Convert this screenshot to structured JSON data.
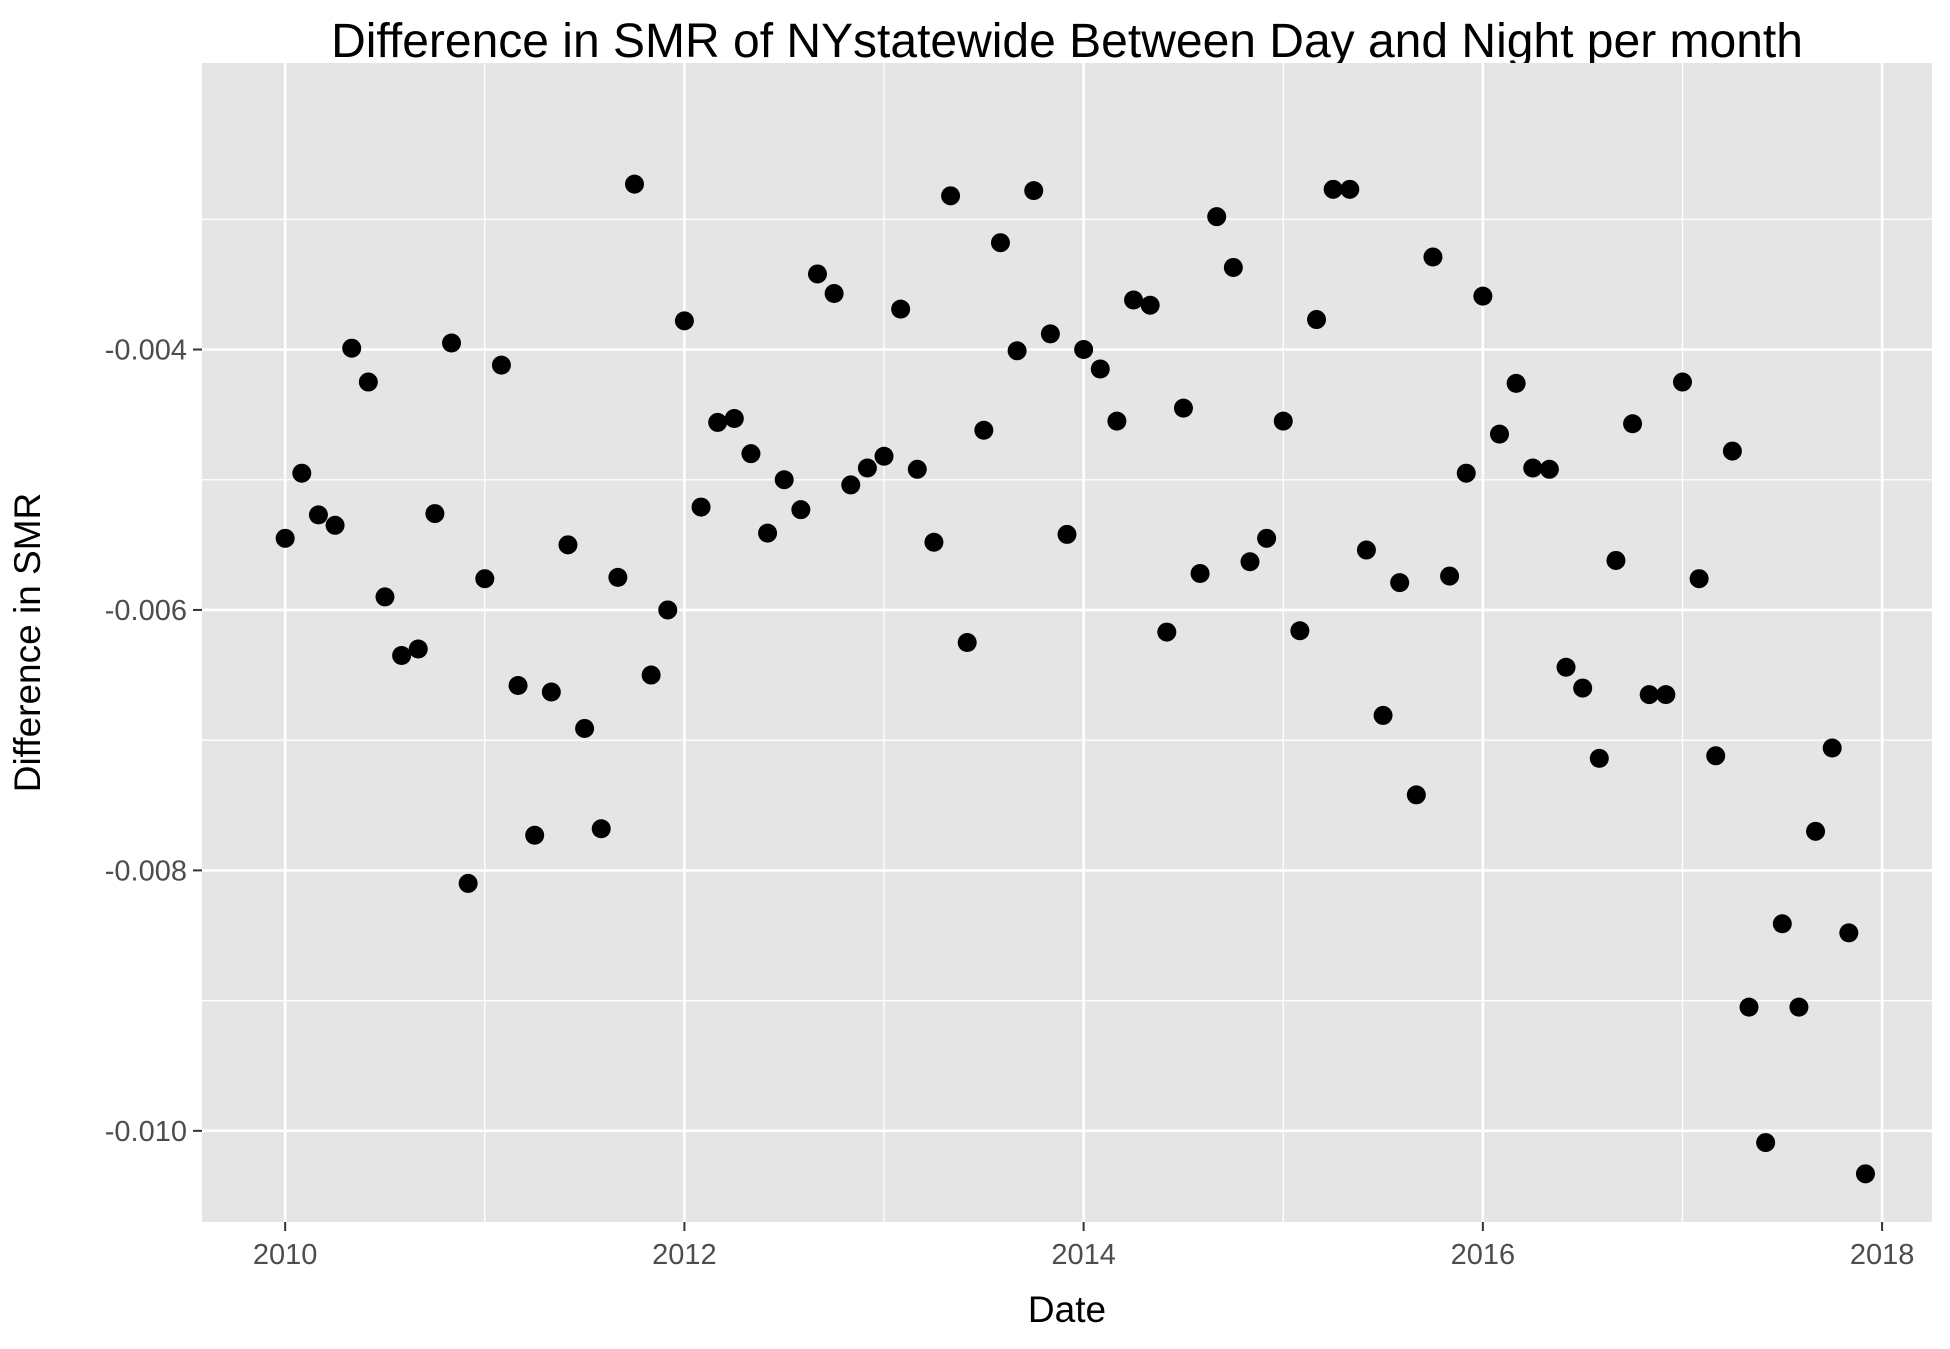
{
  "chart_data": {
    "type": "scatter",
    "title": "Difference in SMR of NYstatewide Between Day and Night per month",
    "xlabel": "Date",
    "ylabel": "Difference in SMR",
    "x_ticks": [
      "2010",
      "2012",
      "2014",
      "2016",
      "2018"
    ],
    "y_ticks": [
      "-0.004",
      "-0.006",
      "-0.008",
      "-0.010"
    ],
    "xlim": [
      "2009-08",
      "2018-04"
    ],
    "ylim": [
      -0.0107,
      -0.0018
    ],
    "grid": true,
    "legend": "none",
    "point_color": "#000000",
    "panel_background": "#e5e5e5",
    "grid_color": "#ffffff",
    "series": [
      {
        "points": [
          [
            "2010-01",
            -0.00545
          ],
          [
            "2010-02",
            -0.00495
          ],
          [
            "2010-03",
            -0.00527
          ],
          [
            "2010-04",
            -0.00535
          ],
          [
            "2010-05",
            -0.00399
          ],
          [
            "2010-06",
            -0.00425
          ],
          [
            "2010-07",
            -0.0059
          ],
          [
            "2010-08",
            -0.00635
          ],
          [
            "2010-09",
            -0.0063
          ],
          [
            "2010-10",
            -0.00526
          ],
          [
            "2010-11",
            -0.00395
          ],
          [
            "2010-12",
            -0.0081
          ],
          [
            "2011-01",
            -0.00576
          ],
          [
            "2011-02",
            -0.00412
          ],
          [
            "2011-03",
            -0.00658
          ],
          [
            "2011-04",
            -0.00773
          ],
          [
            "2011-05",
            -0.00663
          ],
          [
            "2011-06",
            -0.0055
          ],
          [
            "2011-07",
            -0.00691
          ],
          [
            "2011-08",
            -0.00768
          ],
          [
            "2011-09",
            -0.00575
          ],
          [
            "2011-10",
            -0.00273
          ],
          [
            "2011-11",
            -0.0065
          ],
          [
            "2011-12",
            -0.006
          ],
          [
            "2012-01",
            -0.00378
          ],
          [
            "2012-02",
            -0.00521
          ],
          [
            "2012-03",
            -0.00456
          ],
          [
            "2012-04",
            -0.00453
          ],
          [
            "2012-05",
            -0.0048
          ],
          [
            "2012-06",
            -0.00541
          ],
          [
            "2012-07",
            -0.005
          ],
          [
            "2012-08",
            -0.00523
          ],
          [
            "2012-09",
            -0.00342
          ],
          [
            "2012-10",
            -0.00357
          ],
          [
            "2012-11",
            -0.00504
          ],
          [
            "2012-12",
            -0.00491
          ],
          [
            "2013-01",
            -0.00482
          ],
          [
            "2013-02",
            -0.00369
          ],
          [
            "2013-03",
            -0.00492
          ],
          [
            "2013-04",
            -0.00548
          ],
          [
            "2013-05",
            -0.00282
          ],
          [
            "2013-06",
            -0.00625
          ],
          [
            "2013-07",
            -0.00462
          ],
          [
            "2013-08",
            -0.00318
          ],
          [
            "2013-09",
            -0.00401
          ],
          [
            "2013-10",
            -0.00278
          ],
          [
            "2013-11",
            -0.00388
          ],
          [
            "2013-12",
            -0.00542
          ],
          [
            "2014-01",
            -0.004
          ],
          [
            "2014-02",
            -0.00415
          ],
          [
            "2014-03",
            -0.00455
          ],
          [
            "2014-04",
            -0.00362
          ],
          [
            "2014-05",
            -0.00366
          ],
          [
            "2014-06",
            -0.00617
          ],
          [
            "2014-07",
            -0.00445
          ],
          [
            "2014-08",
            -0.00572
          ],
          [
            "2014-09",
            -0.00298
          ],
          [
            "2014-10",
            -0.00337
          ],
          [
            "2014-11",
            -0.00563
          ],
          [
            "2014-12",
            -0.00545
          ],
          [
            "2015-01",
            -0.00455
          ],
          [
            "2015-02",
            -0.00616
          ],
          [
            "2015-03",
            -0.00377
          ],
          [
            "2015-04",
            -0.00277
          ],
          [
            "2015-05",
            -0.00277
          ],
          [
            "2015-06",
            -0.00554
          ],
          [
            "2015-07",
            -0.00681
          ],
          [
            "2015-08",
            -0.00579
          ],
          [
            "2015-09",
            -0.00742
          ],
          [
            "2015-10",
            -0.00329
          ],
          [
            "2015-11",
            -0.00574
          ],
          [
            "2015-12",
            -0.00495
          ],
          [
            "2016-01",
            -0.00359
          ],
          [
            "2016-02",
            -0.00465
          ],
          [
            "2016-03",
            -0.00426
          ],
          [
            "2016-04",
            -0.00491
          ],
          [
            "2016-05",
            -0.00492
          ],
          [
            "2016-06",
            -0.00644
          ],
          [
            "2016-07",
            -0.0066
          ],
          [
            "2016-08",
            -0.00714
          ],
          [
            "2016-09",
            -0.00562
          ],
          [
            "2016-10",
            -0.00457
          ],
          [
            "2016-11",
            -0.00665
          ],
          [
            "2016-12",
            -0.00665
          ],
          [
            "2017-01",
            -0.00425
          ],
          [
            "2017-02",
            -0.00576
          ],
          [
            "2017-03",
            -0.00712
          ],
          [
            "2017-04",
            -0.00478
          ],
          [
            "2017-05",
            -0.00905
          ],
          [
            "2017-06",
            -0.01009
          ],
          [
            "2017-07",
            -0.00841
          ],
          [
            "2017-08",
            -0.00905
          ],
          [
            "2017-09",
            -0.0077
          ],
          [
            "2017-10",
            -0.00706
          ],
          [
            "2017-11",
            -0.00848
          ],
          [
            "2017-12",
            -0.01033
          ]
        ]
      }
    ]
  }
}
